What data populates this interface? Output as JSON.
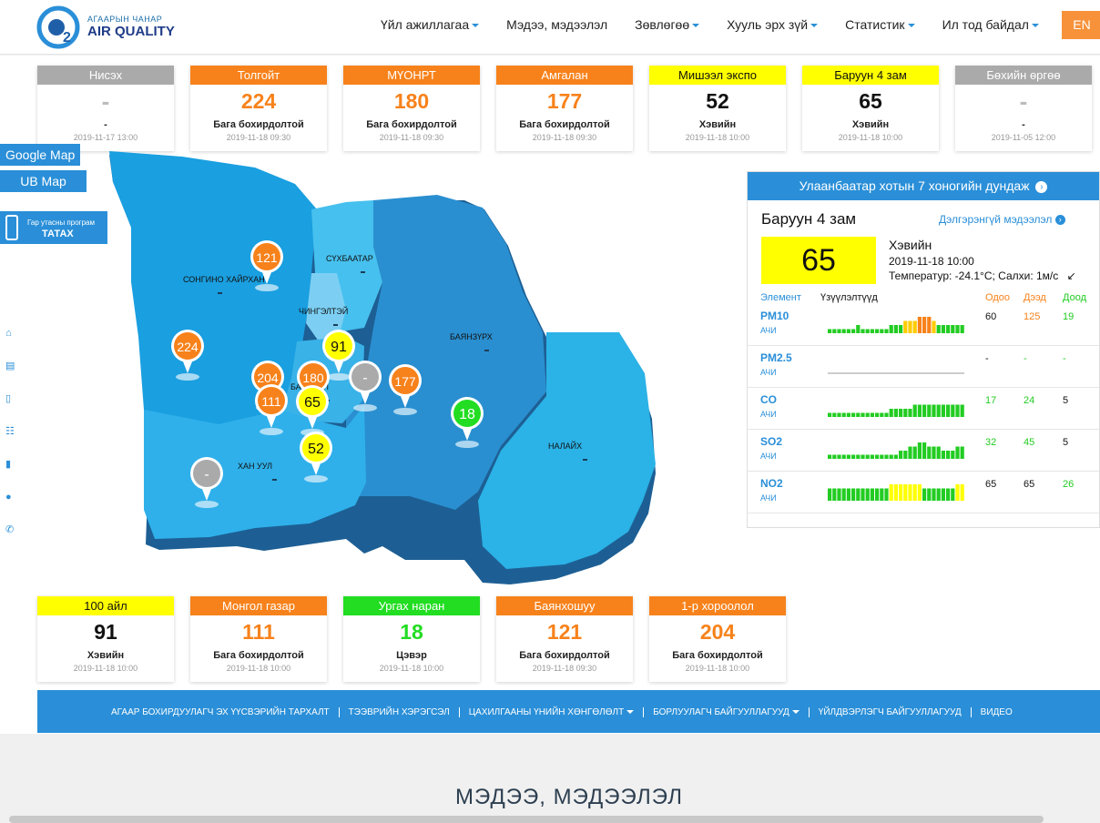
{
  "logo": {
    "small": "АГААРЫН ЧАНАР",
    "big": "AIR QUALITY"
  },
  "nav": {
    "items": [
      {
        "label": "Үйл ажиллагаа",
        "dropdown": true
      },
      {
        "label": "Мэдээ, мэдээлэл",
        "dropdown": false
      },
      {
        "label": "Зөвлөгөө",
        "dropdown": true
      },
      {
        "label": "Хууль эрх зүй",
        "dropdown": true
      },
      {
        "label": "Статистик",
        "dropdown": true
      },
      {
        "label": "Ил тод байдал",
        "dropdown": true
      }
    ],
    "lang_button": "EN"
  },
  "colors": {
    "gray": "#aaaaaa",
    "orange": "#f7821b",
    "yellow": "#ffff00",
    "green": "#22dd22",
    "blue": "#2a8fd8"
  },
  "top_cards": [
    {
      "name": "Нисэх",
      "value": "-",
      "status": "-",
      "date": "2019-11-17 13:00",
      "color": "gray"
    },
    {
      "name": "Толгойт",
      "value": "224",
      "status": "Бага бохирдолтой",
      "date": "2019-11-18 09:30",
      "color": "orange"
    },
    {
      "name": "МҮОНРТ",
      "value": "180",
      "status": "Бага бохирдолтой",
      "date": "2019-11-18 09:30",
      "color": "orange"
    },
    {
      "name": "Амгалан",
      "value": "177",
      "status": "Бага бохирдолтой",
      "date": "2019-11-18 09:30",
      "color": "orange"
    },
    {
      "name": "Мишээл экспо",
      "value": "52",
      "status": "Хэвийн",
      "date": "2019-11-18 10:00",
      "color": "yellow"
    },
    {
      "name": "Баруун 4 зам",
      "value": "65",
      "status": "Хэвийн",
      "date": "2019-11-18 10:00",
      "color": "yellow"
    },
    {
      "name": "Бөхийн өргөө",
      "value": "-",
      "status": "-",
      "date": "2019-11-05 12:00",
      "color": "gray"
    }
  ],
  "bottom_cards": [
    {
      "name": "100 айл",
      "value": "91",
      "status": "Хэвийн",
      "date": "2019-11-18 10:00",
      "color": "yellow"
    },
    {
      "name": "Монгол газар",
      "value": "111",
      "status": "Бага бохирдолтой",
      "date": "2019-11-18 10:00",
      "color": "orange"
    },
    {
      "name": "Ургах наран",
      "value": "18",
      "status": "Цэвэр",
      "date": "2019-11-18 10:00",
      "color": "green"
    },
    {
      "name": "Баянхошуу",
      "value": "121",
      "status": "Бага бохирдолтой",
      "date": "2019-11-18 09:30",
      "color": "orange"
    },
    {
      "name": "1-р хороолол",
      "value": "204",
      "status": "Бага бохирдолтой",
      "date": "2019-11-18 10:00",
      "color": "orange"
    }
  ],
  "side": {
    "google_map": "Google Map",
    "ub_map": "UB Map",
    "mobile_line1": "Гар утасны програм",
    "mobile_line2": "ТАТАХ",
    "icons": [
      "home-icon",
      "news-icon",
      "document-icon",
      "list-icon",
      "mobile-icon",
      "person-icon",
      "phone-icon"
    ]
  },
  "map": {
    "districts": [
      "СОНГИНО ХАЙРХАН",
      "СҮХБААТАР",
      "ЧИНГЭЛТЭЙ",
      "БАЯНЗҮРХ",
      "БАЯНГОЛ",
      "ХАН УУЛ",
      "НАЛАЙХ"
    ],
    "markers": [
      {
        "value": "121",
        "color": "orange"
      },
      {
        "value": "224",
        "color": "orange"
      },
      {
        "value": "91",
        "color": "yellow"
      },
      {
        "value": "204",
        "color": "orange"
      },
      {
        "value": "180",
        "color": "orange"
      },
      {
        "value": "-",
        "color": "gray"
      },
      {
        "value": "177",
        "color": "orange"
      },
      {
        "value": "111",
        "color": "orange"
      },
      {
        "value": "65",
        "color": "yellow"
      },
      {
        "value": "18",
        "color": "green"
      },
      {
        "value": "52",
        "color": "yellow"
      },
      {
        "value": "-",
        "color": "gray"
      }
    ]
  },
  "info": {
    "header": "Улаанбаатар хотын 7 хоногийн дундаж",
    "station": "Баруун 4 зам",
    "link": "Дэлгэрэнгүй мэдээлэл",
    "aqi": "65",
    "status": "Хэвийн",
    "date": "2019-11-18 10:00",
    "weather": "Температур: -24.1°C; Салхи: 1м/с",
    "columns": {
      "element": "Элемент",
      "indicator": "Үзүүлэлтүүд",
      "now": "Одоо",
      "high": "Дээд",
      "low": "Доод"
    },
    "pollutants": [
      {
        "name": "PM10",
        "level": "АЧИ",
        "now": "60",
        "high": "125",
        "low": "19",
        "bars": [
          1,
          1,
          1,
          1,
          1,
          1,
          2,
          1,
          1,
          1,
          1,
          1,
          1,
          2,
          2,
          2,
          3,
          3,
          3,
          4,
          4,
          4,
          3,
          2,
          2,
          2,
          2,
          2,
          2
        ]
      },
      {
        "name": "PM2.5",
        "level": "АЧИ",
        "now": "-",
        "high": "-",
        "low": "-",
        "bars": []
      },
      {
        "name": "CO",
        "level": "АЧИ",
        "now": "17",
        "high": "24",
        "low": "5",
        "bars": [
          1,
          1,
          1,
          1,
          1,
          1,
          1,
          1,
          1,
          1,
          1,
          1,
          1,
          2,
          2,
          2,
          2,
          2,
          3,
          3,
          3,
          3,
          3,
          3,
          3,
          3,
          3,
          3,
          3
        ]
      },
      {
        "name": "SO2",
        "level": "АЧИ",
        "now": "32",
        "high": "45",
        "low": "5",
        "bars": [
          1,
          1,
          1,
          1,
          1,
          1,
          1,
          1,
          1,
          1,
          1,
          1,
          1,
          1,
          1,
          2,
          2,
          3,
          3,
          4,
          4,
          3,
          3,
          3,
          2,
          2,
          2,
          3,
          3
        ]
      },
      {
        "name": "NO2",
        "level": "АЧИ",
        "now": "65",
        "high": "65",
        "low": "26",
        "bars": [
          3,
          3,
          3,
          3,
          3,
          3,
          3,
          3,
          3,
          3,
          3,
          3,
          3,
          4,
          4,
          4,
          4,
          4,
          4,
          4,
          3,
          3,
          3,
          3,
          3,
          3,
          3,
          4,
          4
        ]
      }
    ]
  },
  "bottom_bar": {
    "items": [
      {
        "label": "АГААР БОХИРДУУЛАГЧ ЭХ ҮҮСВЭРИЙН ТАРХАЛТ",
        "dropdown": false
      },
      {
        "label": "ТЭЭВРИЙН ХЭРЭГСЭЛ",
        "dropdown": false
      },
      {
        "label": "ЦАХИЛГААНЫ ҮНИЙН ХӨНГӨЛӨЛТ",
        "dropdown": true
      },
      {
        "label": "БОРЛУУЛАГЧ БАЙГУУЛЛАГУУД",
        "dropdown": true
      },
      {
        "label": "ҮЙЛДВЭРЛЭГЧ БАЙГУУЛЛАГУУД",
        "dropdown": false
      },
      {
        "label": "ВИДЕО",
        "dropdown": false
      }
    ]
  },
  "news_title": "МЭДЭЭ, МЭДЭЭЛЭЛ"
}
